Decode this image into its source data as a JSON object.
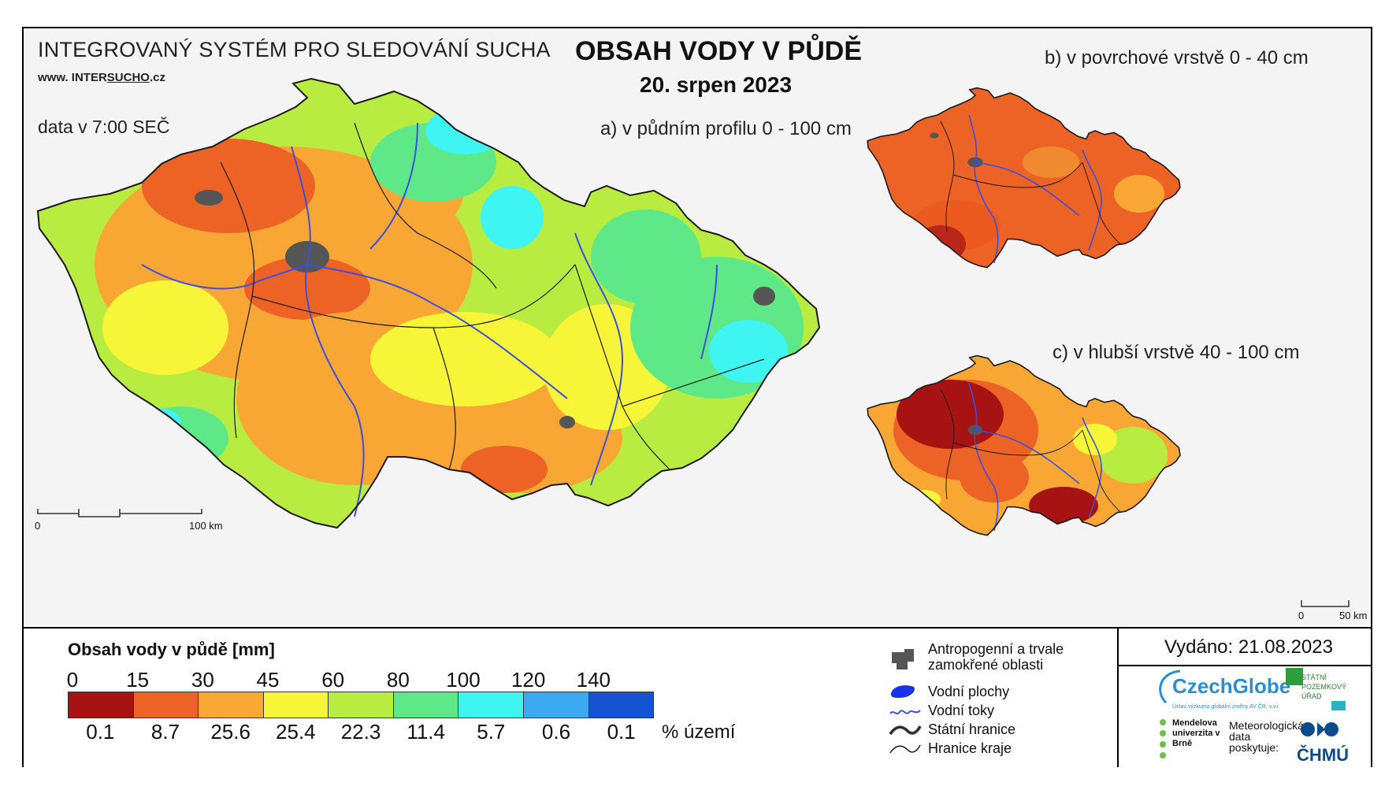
{
  "header": {
    "system_title": "INTEGROVANÝ SYSTÉM PRO SLEDOVÁNÍ SUCHA",
    "website_prefix": "www. INTER",
    "website_accent": "SUCHO",
    "website_suffix": ".cz",
    "time_info": "data v 7:00 SEČ",
    "main_title": "OBSAH VODY V PŮDĚ",
    "date": "20. srpen 2023"
  },
  "maps": {
    "a_label": "a) v půdním profilu 0 - 100 cm",
    "b_label": "b) v povrchové vrstvě 0 - 40 cm",
    "c_label": "c) v hlubší vrstvě 40 - 100 cm",
    "scale_main": {
      "start": "0",
      "end": "100 km"
    },
    "scale_small": {
      "start": "0",
      "end": "50 km"
    }
  },
  "legend": {
    "title": "Obsah vody v půdě  [mm]",
    "breaks": [
      "0",
      "15",
      "30",
      "45",
      "60",
      "80",
      "100",
      "120",
      "140"
    ],
    "colors": [
      "#a71212",
      "#ec6325",
      "#f8a735",
      "#f7f538",
      "#b9ec40",
      "#5ee888",
      "#3ff5f2",
      "#3aa9f0",
      "#1453d1"
    ],
    "percentages": [
      "0.1",
      "8.7",
      "25.6",
      "25.4",
      "22.3",
      "11.4",
      "5.7",
      "0.6",
      "0.1"
    ],
    "percent_unit": "% území"
  },
  "symbols": {
    "anthropogenic": "Antropogenní a trvale zamokřené oblasti",
    "water_bodies": "Vodní plochy",
    "rivers": "Vodní toky",
    "state_border": "Státní hranice",
    "region_border": "Hranice kraje"
  },
  "footer": {
    "issued": "Vydáno: 21.08.2023",
    "czechglobe": "CzechGlobe",
    "czechglobe_sub": "Ústav výzkumu globální změny AV ČR, v.v.i.",
    "spu": "STÁTNÍ POZEMKOVÝ ÚŘAD",
    "mendel": "Mendelova univerzita v Brně",
    "meteo": "Meteorologická data poskytuje:",
    "chmu": "ČHMÚ"
  },
  "map_colors": {
    "river": "#3b4fe0",
    "urban": "#555555",
    "border": "#1a1a1a"
  }
}
